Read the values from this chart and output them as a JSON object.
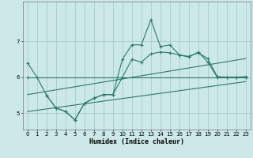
{
  "xlabel": "Humidex (Indice chaleur)",
  "x_values": [
    0,
    1,
    2,
    3,
    4,
    5,
    6,
    7,
    8,
    9,
    10,
    11,
    12,
    13,
    14,
    15,
    16,
    17,
    18,
    19,
    20,
    21,
    22,
    23
  ],
  "line1": [
    6.4,
    6.0,
    5.5,
    5.15,
    5.05,
    4.82,
    5.28,
    5.42,
    5.52,
    5.52,
    6.5,
    6.9,
    6.9,
    7.6,
    6.85,
    6.9,
    6.62,
    6.56,
    6.7,
    6.42,
    6.0,
    6.0,
    6.0,
    6.02
  ],
  "line2_x": [
    0,
    23
  ],
  "line2_y": [
    6.0,
    6.0
  ],
  "line3_x": [
    2,
    3,
    4,
    5,
    6,
    7,
    8,
    9,
    10,
    11,
    12,
    13,
    14,
    15,
    16,
    17,
    18,
    19,
    20,
    21,
    22,
    23
  ],
  "line3": [
    5.5,
    5.15,
    5.05,
    4.82,
    5.28,
    5.42,
    5.52,
    5.52,
    6.0,
    6.5,
    6.42,
    6.65,
    6.7,
    6.68,
    6.62,
    6.58,
    6.68,
    6.52,
    6.02,
    6.0,
    6.0,
    6.0
  ],
  "trend1_x": [
    0,
    23
  ],
  "trend1_y": [
    5.52,
    6.52
  ],
  "trend2_x": [
    0,
    23
  ],
  "trend2_y": [
    5.05,
    5.88
  ],
  "line_color": "#2a7a6a",
  "bg_color": "#cce8e8",
  "grid_color": "#aacccc",
  "ylim": [
    4.55,
    8.1
  ],
  "xlim": [
    -0.5,
    23.5
  ],
  "yticks": [
    5,
    6,
    7
  ],
  "xticks": [
    0,
    1,
    2,
    3,
    4,
    5,
    6,
    7,
    8,
    9,
    10,
    11,
    12,
    13,
    14,
    15,
    16,
    17,
    18,
    19,
    20,
    21,
    22,
    23
  ]
}
